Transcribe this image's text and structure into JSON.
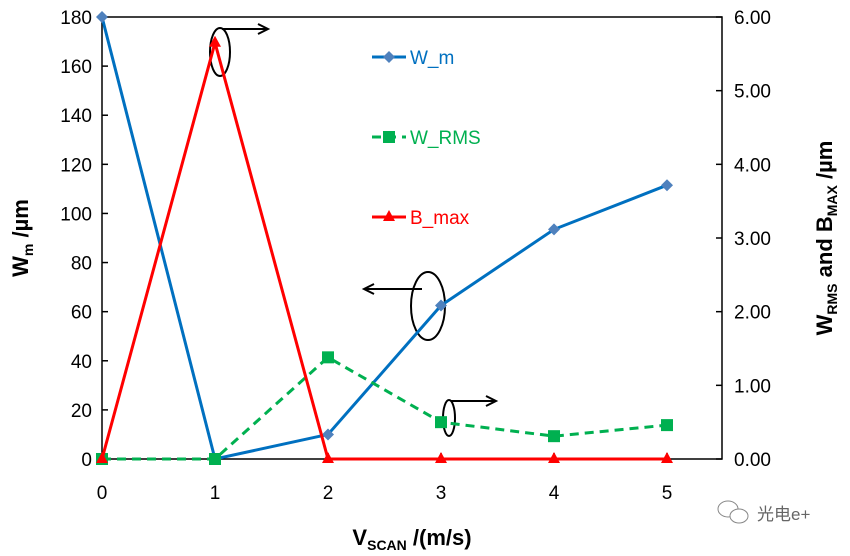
{
  "chart_data": {
    "type": "line",
    "x": [
      0,
      1,
      2,
      3,
      4,
      5
    ],
    "xlabel": {
      "main": "V",
      "sub": "SCAN",
      "rest": " /(m/s)"
    },
    "ylabel_left": {
      "main": "W",
      "sub": "m",
      "rest": " /µm"
    },
    "ylabel_right": {
      "p1": "W",
      "s1": "RMS",
      "p2": " and B",
      "s2": "MAX",
      "p3": " /µm"
    },
    "xlim": [
      0,
      5.5
    ],
    "ylim_left": [
      0,
      180
    ],
    "ylim_right": [
      0,
      6
    ],
    "xticks": [
      "0",
      "1",
      "2",
      "3",
      "4",
      "5"
    ],
    "yticks_left": [
      "0",
      "20",
      "40",
      "60",
      "80",
      "100",
      "120",
      "140",
      "160",
      "180"
    ],
    "yticks_right": [
      "0.00",
      "1.00",
      "2.00",
      "3.00",
      "4.00",
      "5.00",
      "6.00"
    ],
    "series": [
      {
        "name": "W_m",
        "axis": "left",
        "color": "#0070C0",
        "marker": "diamond",
        "marker_color": "#4F81BD",
        "dash": false,
        "values": [
          180,
          0,
          10,
          62.5,
          93.5,
          111.5
        ]
      },
      {
        "name": "W_RMS",
        "axis": "right",
        "color": "#00B050",
        "marker": "square",
        "marker_color": "#00B050",
        "dash": true,
        "values": [
          0,
          0,
          1.38,
          0.5,
          0.31,
          0.46
        ]
      },
      {
        "name": "B_max",
        "axis": "right",
        "color": "#FF0000",
        "marker": "triangle",
        "marker_color": "#FF0000",
        "dash": false,
        "values": [
          0,
          5.65,
          0,
          0,
          0,
          0
        ]
      }
    ],
    "legend": "top-center",
    "grid": false
  },
  "watermark": "光电e+"
}
